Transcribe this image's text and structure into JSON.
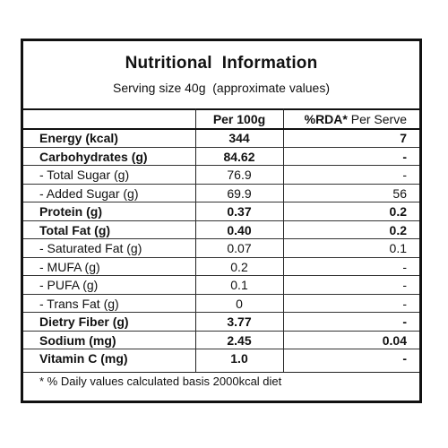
{
  "title": "Nutritional  Information",
  "serving": "Serving size 40g  (approximate values)",
  "columns": {
    "per100": "Per 100g",
    "rda_bold": "%RDA*",
    "rda_rest": " Per Serve"
  },
  "rows": [
    {
      "label": "Energy (kcal)",
      "per100": "344",
      "rda": "7",
      "bold": true
    },
    {
      "label": "Carbohydrates (g)",
      "per100": "84.62",
      "rda": "-",
      "bold": true
    },
    {
      "label": "- Total Sugar (g)",
      "per100": "76.9",
      "rda": "-",
      "bold": false
    },
    {
      "label": "- Added Sugar (g)",
      "per100": "69.9",
      "rda": "56",
      "bold": false
    },
    {
      "label": "Protein (g)",
      "per100": "0.37",
      "rda": "0.2",
      "bold": true
    },
    {
      "label": "Total Fat (g)",
      "per100": "0.40",
      "rda": "0.2",
      "bold": true
    },
    {
      "label": "- Saturated Fat (g)",
      "per100": "0.07",
      "rda": "0.1",
      "bold": false
    },
    {
      "label": "- MUFA (g)",
      "per100": "0.2",
      "rda": "-",
      "bold": false
    },
    {
      "label": "- PUFA (g)",
      "per100": "0.1",
      "rda": "-",
      "bold": false
    },
    {
      "label": "- Trans Fat (g)",
      "per100": "0",
      "rda": "-",
      "bold": false
    },
    {
      "label": "Dietry Fiber (g)",
      "per100": "3.77",
      "rda": "-",
      "bold": true
    },
    {
      "label": "Sodium (mg)",
      "per100": "2.45",
      "rda": "0.04",
      "bold": true
    },
    {
      "label": "Vitamin C (mg)",
      "per100": "1.0",
      "rda": "-",
      "bold": true
    }
  ],
  "footnote": "* % Daily values calculated basis 2000kcal diet"
}
